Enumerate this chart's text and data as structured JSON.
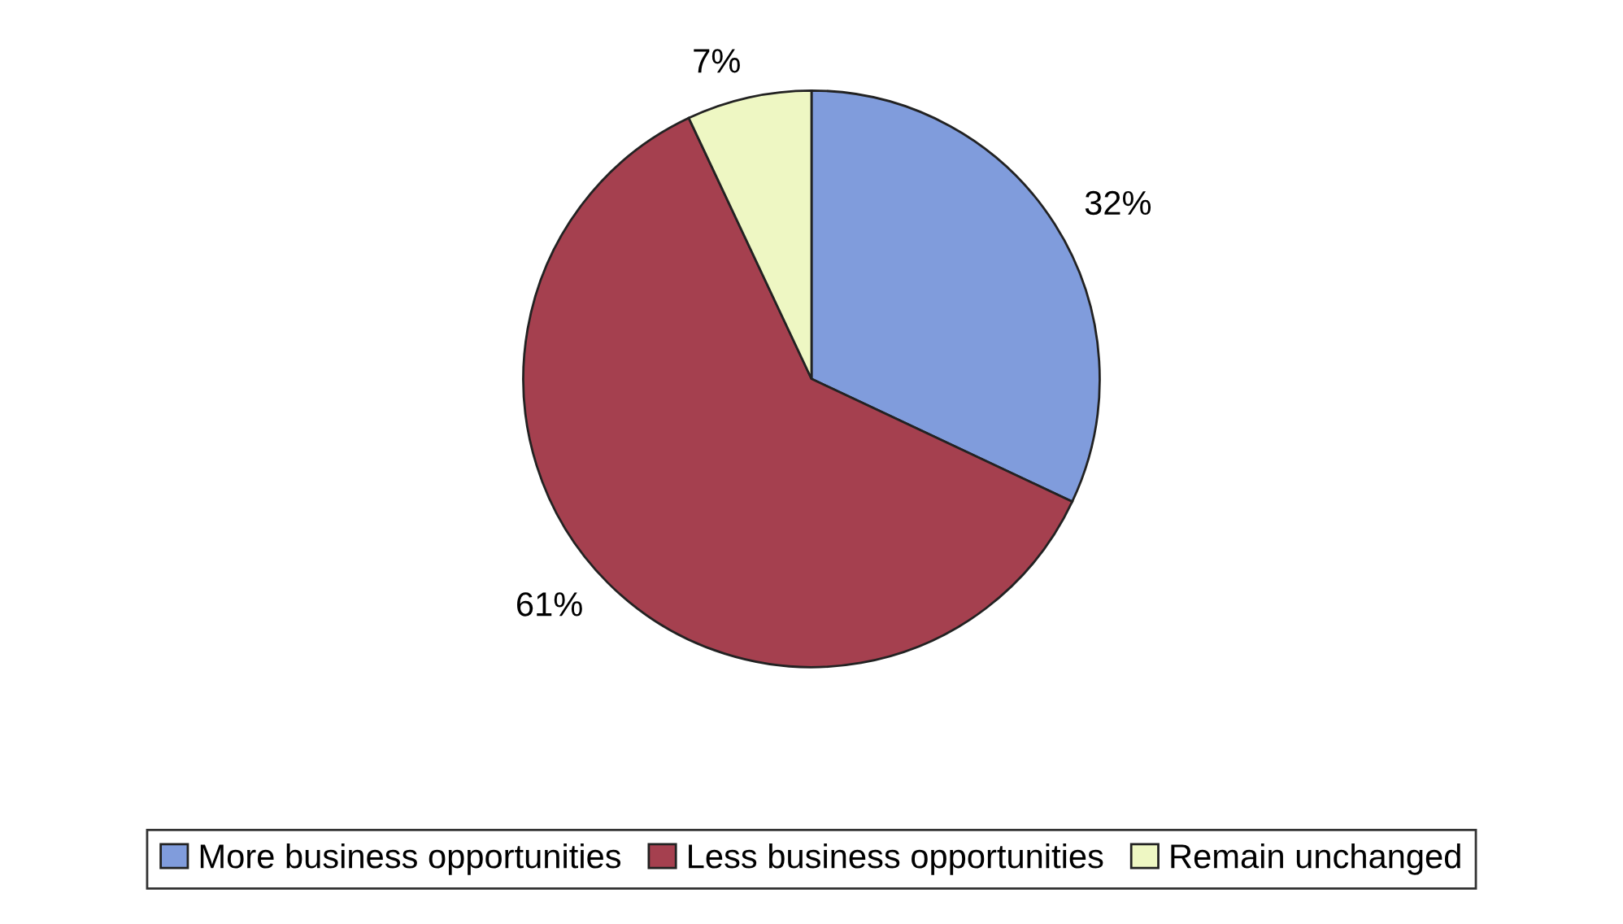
{
  "chart_data": {
    "type": "pie",
    "categories": [
      "More business opportunities",
      "Less business opportunities",
      "Remain unchanged"
    ],
    "values": [
      32,
      61,
      7
    ],
    "colors": [
      "#809cdc",
      "#a5404f",
      "#eef7c3"
    ],
    "value_labels": [
      "32%",
      "61%",
      "7%"
    ],
    "legend": "bottom"
  }
}
